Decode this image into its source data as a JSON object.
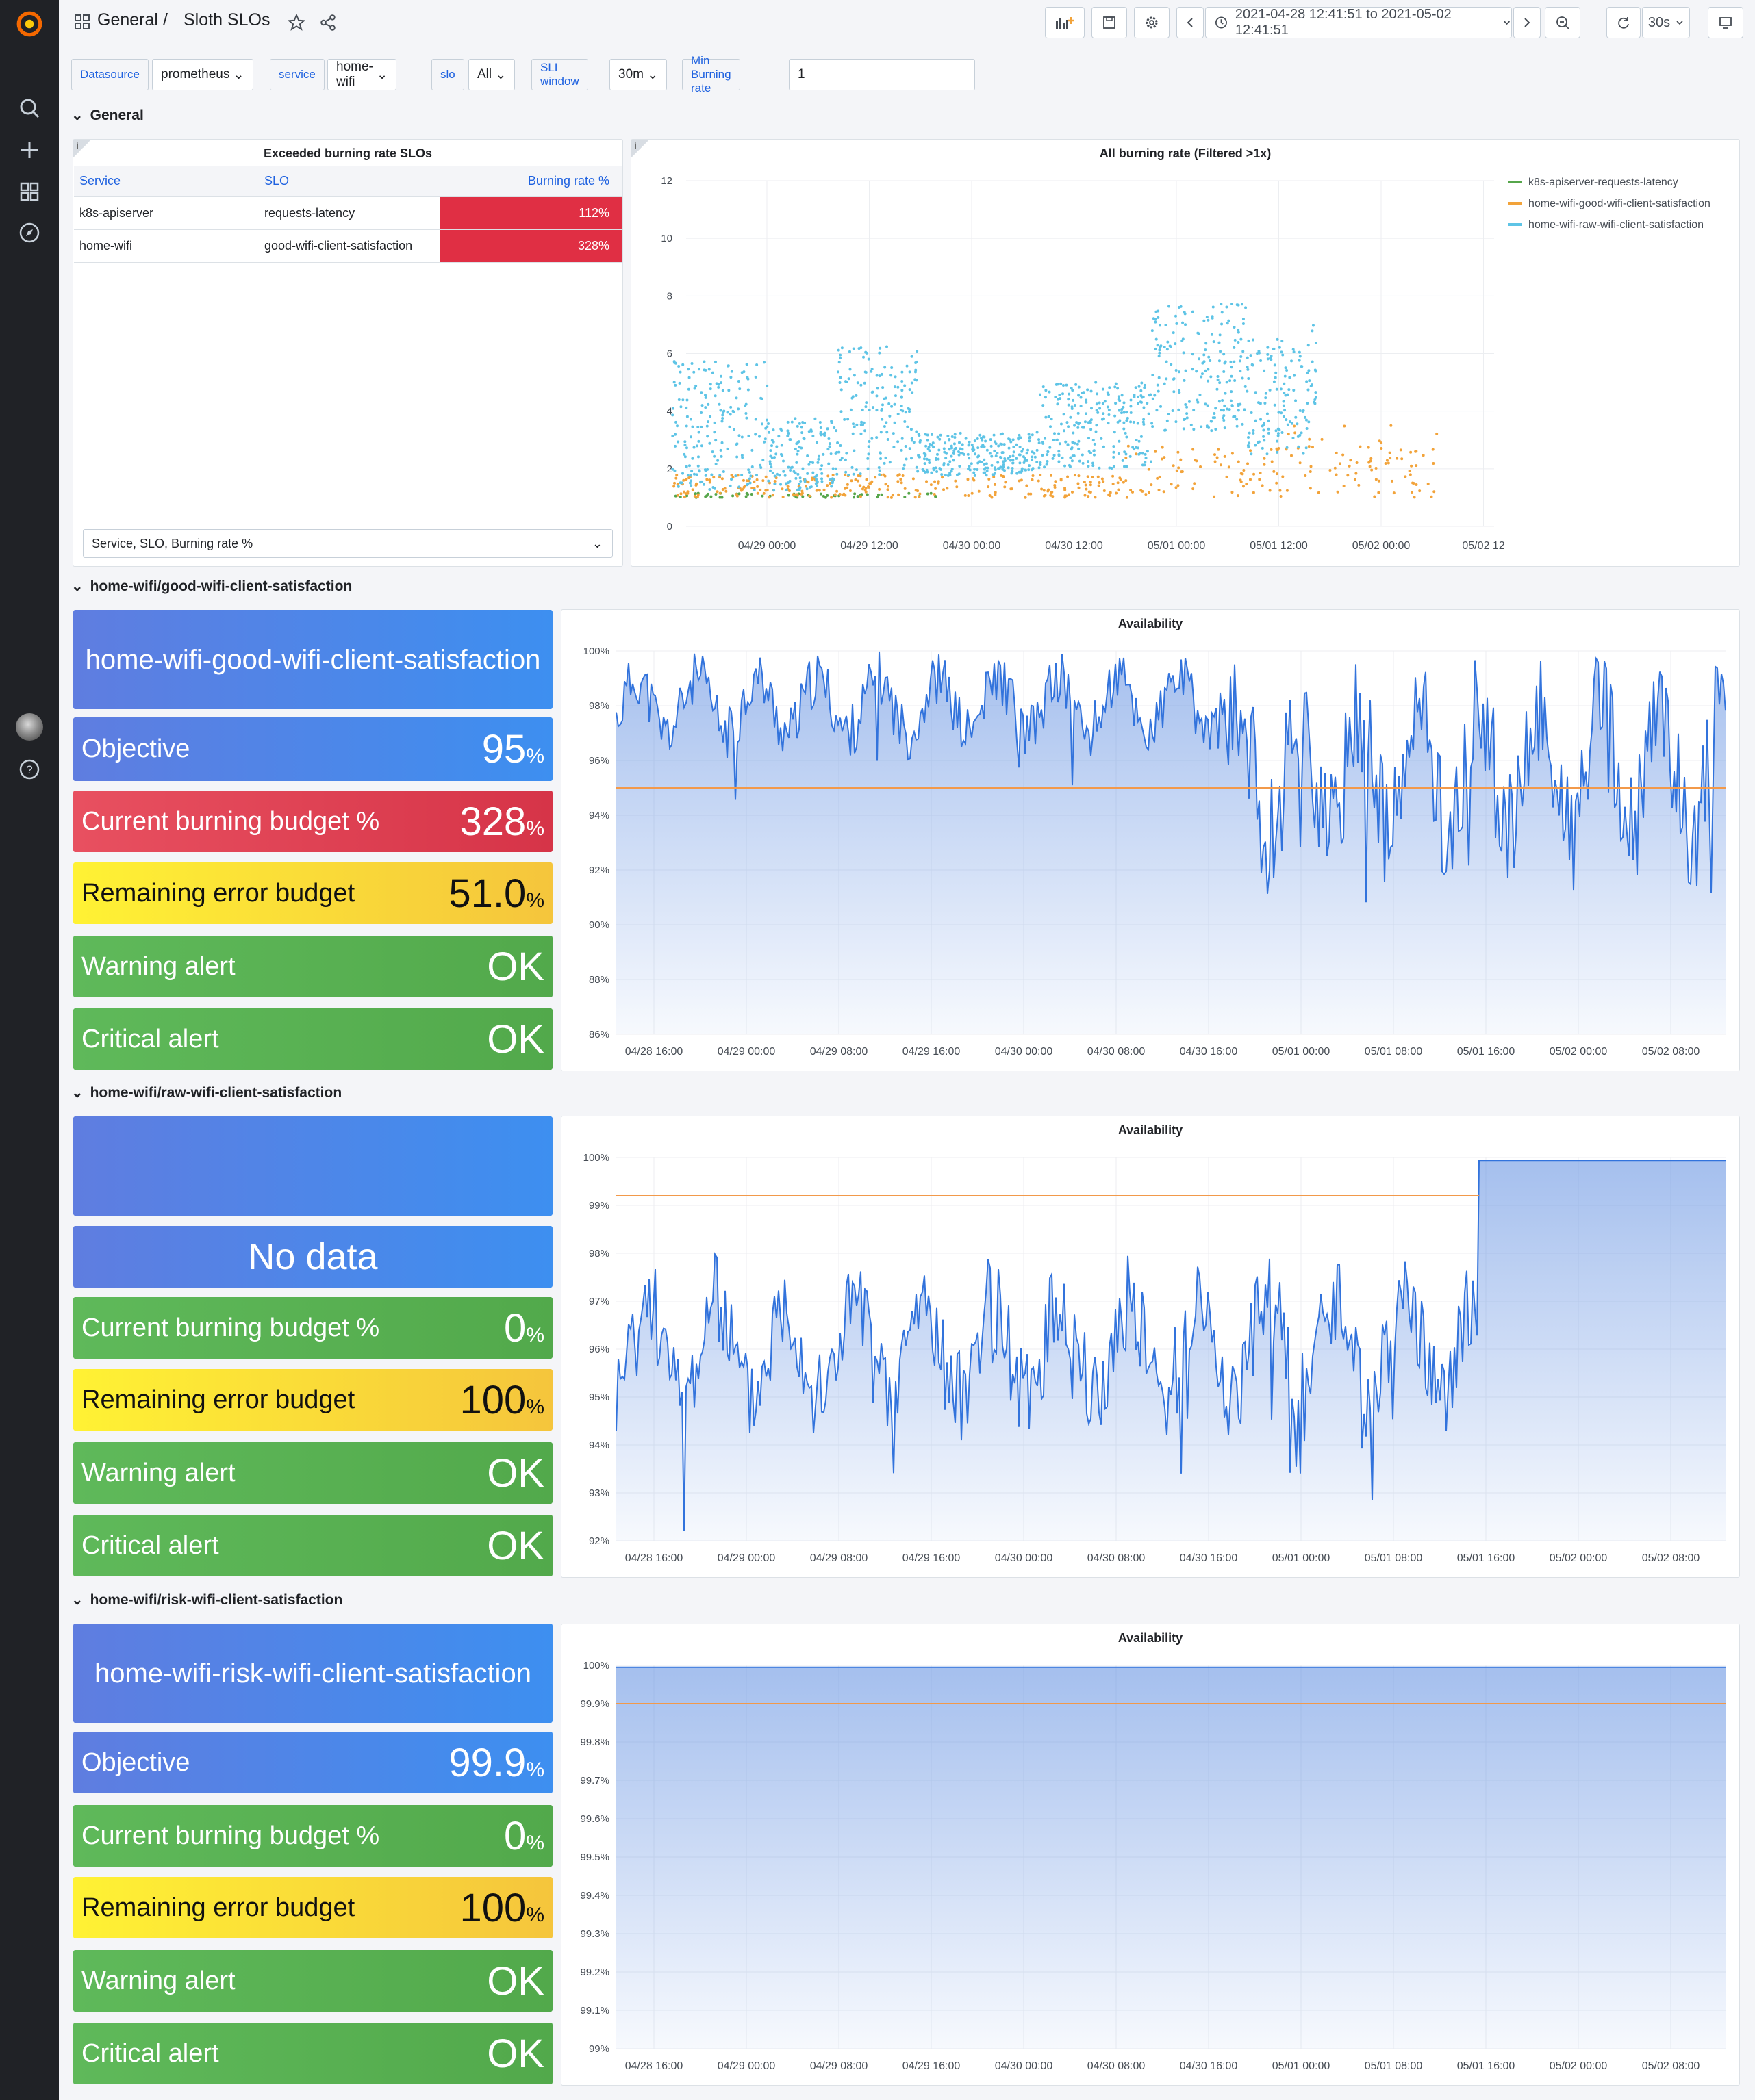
{
  "header": {
    "breadcrumb_root": "General",
    "breadcrumb_sep": "/",
    "title": "Sloth SLOs",
    "time_range": "2021-04-28 12:41:51 to 2021-05-02 12:41:51",
    "refresh": "30s"
  },
  "vars": [
    {
      "label": "Datasource",
      "value": "prometheus"
    },
    {
      "label": "service",
      "value": "home-wifi"
    },
    {
      "label": "slo",
      "value": "All"
    },
    {
      "label": "SLI window",
      "value": "30m"
    },
    {
      "label": "Min Burning rate",
      "value": "1"
    }
  ],
  "rows": {
    "general": "General",
    "good": "home-wifi/good-wifi-client-satisfaction",
    "raw": "home-wifi/raw-wifi-client-satisfaction",
    "risk": "home-wifi/risk-wifi-client-satisfaction"
  },
  "exceeded": {
    "title": "Exceeded burning rate SLOs",
    "columns": [
      "Service",
      "SLO",
      "Burning rate %"
    ],
    "rows": [
      {
        "service": "k8s-apiserver",
        "slo": "requests-latency",
        "rate": "112%"
      },
      {
        "service": "home-wifi",
        "slo": "good-wifi-client-satisfaction",
        "rate": "328%"
      }
    ],
    "footer": "Service, SLO, Burning rate %"
  },
  "chart_data": [
    {
      "type": "scatter",
      "title": "All burning rate (Filtered >1x)",
      "ylim": [
        0,
        12
      ],
      "yticks": [
        "0",
        "2",
        "4",
        "6",
        "8",
        "10",
        "12"
      ],
      "xticks": [
        "04/29 00:00",
        "04/29 12:00",
        "04/30 00:00",
        "04/30 12:00",
        "05/01 00:00",
        "05/01 12:00",
        "05/02 00:00",
        "05/02 12"
      ],
      "series": [
        {
          "name": "k8s-apiserver-requests-latency",
          "color": "#56a64b"
        },
        {
          "name": "home-wifi-good-wifi-client-satisfaction",
          "color": "#f2a33a"
        },
        {
          "name": "home-wifi-raw-wifi-client-satisfaction",
          "color": "#5ec4e6"
        }
      ]
    },
    {
      "type": "area",
      "title": "Availability",
      "ylim": [
        86,
        100
      ],
      "objective": 95,
      "yticks": [
        "100%",
        "98%",
        "96%",
        "94%",
        "92%",
        "90%",
        "88%",
        "86%"
      ],
      "xticks": [
        "04/28 16:00",
        "04/29 00:00",
        "04/29 08:00",
        "04/29 16:00",
        "04/30 00:00",
        "04/30 08:00",
        "04/30 16:00",
        "05/01 00:00",
        "05/01 08:00",
        "05/01 16:00",
        "05/02 00:00",
        "05/02 08:00"
      ]
    },
    {
      "type": "area",
      "title": "Availability",
      "ylim": [
        92,
        100
      ],
      "objective": 99.2,
      "yticks": [
        "100%",
        "99%",
        "98%",
        "97%",
        "96%",
        "95%",
        "94%",
        "93%",
        "92%"
      ],
      "xticks": [
        "04/28 16:00",
        "04/29 00:00",
        "04/29 08:00",
        "04/29 16:00",
        "04/30 00:00",
        "04/30 08:00",
        "04/30 16:00",
        "05/01 00:00",
        "05/01 08:00",
        "05/01 16:00",
        "05/02 00:00",
        "05/02 08:00"
      ]
    },
    {
      "type": "area",
      "title": "Availability",
      "ylim": [
        99,
        100
      ],
      "objective": 99.9,
      "yticks": [
        "100%",
        "99.9%",
        "99.8%",
        "99.7%",
        "99.6%",
        "99.5%",
        "99.4%",
        "99.3%",
        "99.2%",
        "99.1%",
        "99%"
      ],
      "xticks": [
        "04/28 16:00",
        "04/29 00:00",
        "04/29 08:00",
        "04/29 16:00",
        "04/30 00:00",
        "04/30 08:00",
        "04/30 16:00",
        "05/01 00:00",
        "05/01 08:00",
        "05/01 16:00",
        "05/02 00:00",
        "05/02 08:00"
      ]
    }
  ],
  "good": {
    "title": "home-wifi-good-wifi-client-satisfaction",
    "objective_label": "Objective",
    "objective": "95",
    "burning_label": "Current burning budget %",
    "burning": "328",
    "remaining_label": "Remaining error budget",
    "remaining": "51.0",
    "warning_label": "Warning alert",
    "warning": "OK",
    "critical_label": "Critical alert",
    "critical": "OK",
    "unit": "%"
  },
  "raw": {
    "title": "",
    "nodata": "No data",
    "burning_label": "Current burning budget %",
    "burning": "0",
    "remaining_label": "Remaining error budget",
    "remaining": "100",
    "warning_label": "Warning alert",
    "warning": "OK",
    "critical_label": "Critical alert",
    "critical": "OK",
    "unit": "%"
  },
  "risk": {
    "title": "home-wifi-risk-wifi-client-satisfaction",
    "objective_label": "Objective",
    "objective": "99.9",
    "burning_label": "Current burning budget %",
    "burning": "0",
    "remaining_label": "Remaining error budget",
    "remaining": "100",
    "warning_label": "Warning alert",
    "warning": "OK",
    "critical_label": "Critical alert",
    "critical": "OK",
    "unit": "%"
  }
}
